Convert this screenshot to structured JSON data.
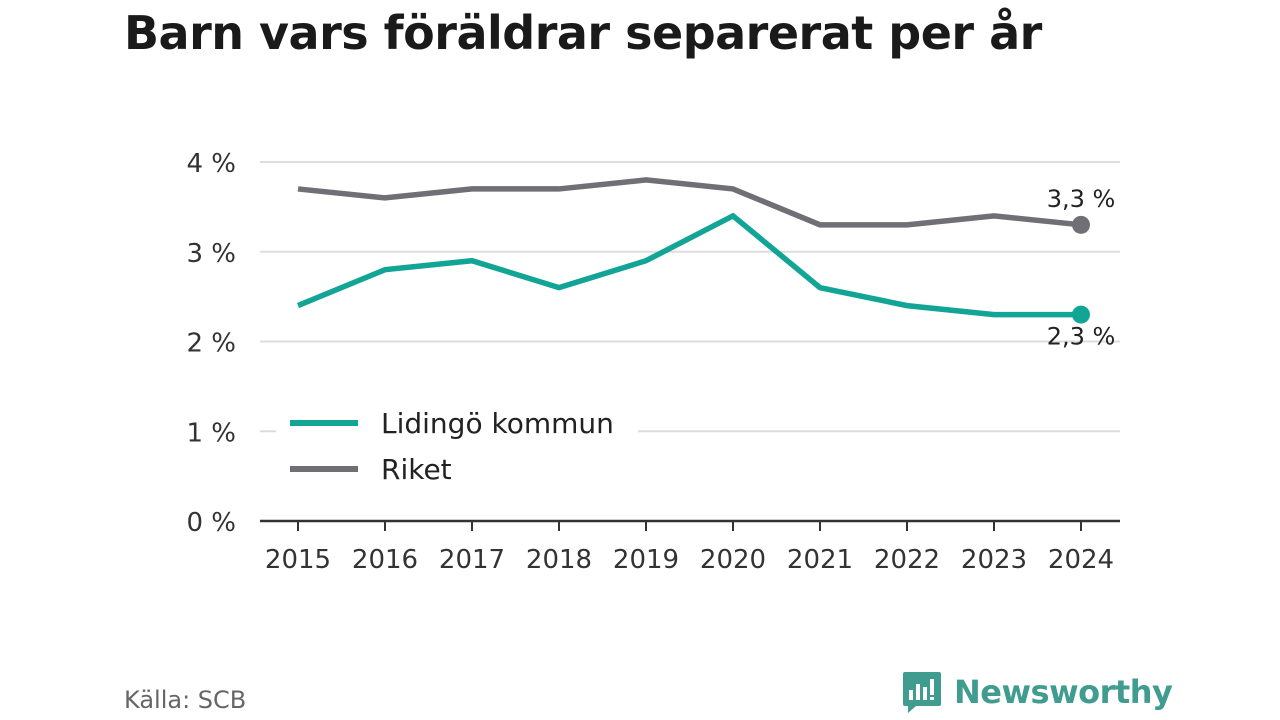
{
  "chart_data": {
    "type": "line",
    "title": "Barn vars föräldrar separerat per år",
    "x": [
      "2015",
      "2016",
      "2017",
      "2018",
      "2019",
      "2020",
      "2021",
      "2022",
      "2023",
      "2024"
    ],
    "series": [
      {
        "name": "Lidingö kommun",
        "color": "#12a596",
        "values": [
          2.4,
          2.8,
          2.9,
          2.6,
          2.9,
          3.4,
          2.6,
          2.4,
          2.3,
          2.3
        ],
        "end_label": "2,3 %"
      },
      {
        "name": "Riket",
        "color": "#6f6f75",
        "values": [
          3.7,
          3.6,
          3.7,
          3.7,
          3.8,
          3.7,
          3.3,
          3.3,
          3.4,
          3.3
        ],
        "end_label": "3,3 %"
      }
    ],
    "yticks": [
      0,
      1,
      2,
      3,
      4
    ],
    "ytick_labels": [
      "0 %",
      "1 %",
      "2 %",
      "3 %",
      "4 %"
    ],
    "ylim": [
      0,
      4
    ],
    "grid": true,
    "legend_position": "lower-left"
  },
  "source": "Källa: SCB",
  "brand": {
    "name": "Newsworthy",
    "icon": "newsworthy-logo-icon",
    "color": "#3f9c8f"
  },
  "colors": {
    "grid": "#dddddd",
    "axis": "#333333",
    "tick_text": "#333333"
  }
}
